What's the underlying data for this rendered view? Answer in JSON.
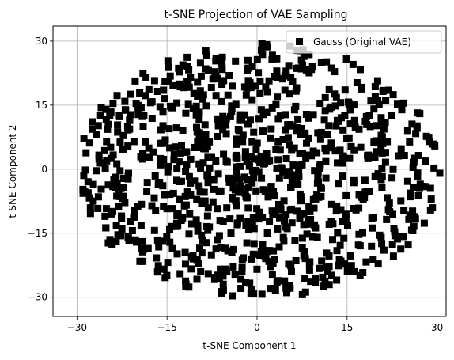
{
  "chart_data": {
    "type": "scatter",
    "title": "t-SNE Projection of VAE Sampling",
    "xlabel": "t-SNE Component 1",
    "ylabel": "t-SNE Component 2",
    "xlim": [
      -34,
      31.5
    ],
    "ylim": [
      -34.5,
      33.5
    ],
    "xticks": [
      -30,
      -15,
      0,
      15,
      30
    ],
    "yticks": [
      -30,
      -15,
      0,
      15,
      30
    ],
    "xtick_labels": [
      "−30",
      "−15",
      "0",
      "15",
      "30"
    ],
    "ytick_labels": [
      "−30",
      "−15",
      "0",
      "15",
      "30"
    ],
    "grid": true,
    "legend_position": "top-right",
    "marker_color": "#000000",
    "series": [
      {
        "name": "Gauss (Original VAE)",
        "marker": "square",
        "sample_count": 1000,
        "distribution": "roughly circular disk centered near (0, 0) with radius about 30",
        "seed": 20240527
      }
    ]
  }
}
